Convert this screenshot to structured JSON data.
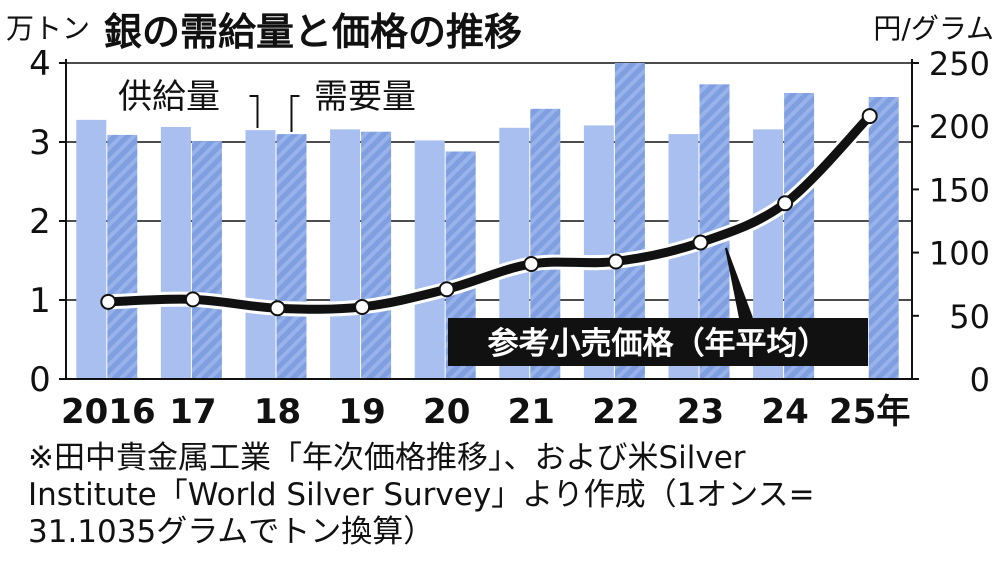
{
  "chart_data": {
    "type": "bar+line",
    "title": "銀の需給量と価格の推移",
    "left_unit": "万トン",
    "right_unit": "円/グラム",
    "categories": [
      "2016",
      "17",
      "18",
      "19",
      "20",
      "21",
      "22",
      "23",
      "24",
      "25年"
    ],
    "left_axis": {
      "ylim": [
        0,
        4
      ],
      "ticks": [
        "0",
        "1",
        "2",
        "3",
        "4"
      ]
    },
    "right_axis": {
      "ylim": [
        0,
        250
      ],
      "ticks": [
        "0",
        "50",
        "100",
        "150",
        "200",
        "250"
      ]
    },
    "series": [
      {
        "name": "供給量",
        "kind": "bar",
        "axis": "left",
        "color": "#a9bff0",
        "values": [
          3.28,
          3.19,
          3.15,
          3.16,
          3.02,
          3.18,
          3.21,
          3.1,
          3.16,
          null
        ]
      },
      {
        "name": "需要量",
        "kind": "bar",
        "axis": "left",
        "color": "#7f9fe0",
        "pattern": "diagonal-hatch",
        "values": [
          3.09,
          3.01,
          3.1,
          3.13,
          2.88,
          3.42,
          4.0,
          3.73,
          3.62,
          3.57
        ]
      },
      {
        "name": "参考小売価格（年平均）",
        "kind": "line",
        "axis": "right",
        "color": "#111111",
        "values": [
          61,
          63,
          56,
          57,
          71,
          91,
          93,
          108,
          139,
          208
        ]
      }
    ],
    "grid": true
  },
  "footnote": {
    "line1": "※田中貴金属工業「年次価格推移」、および米Silver",
    "line2": "Institute「World Silver Survey」より作成（1オンス=",
    "line3": "31.1035グラムでトン換算）"
  }
}
